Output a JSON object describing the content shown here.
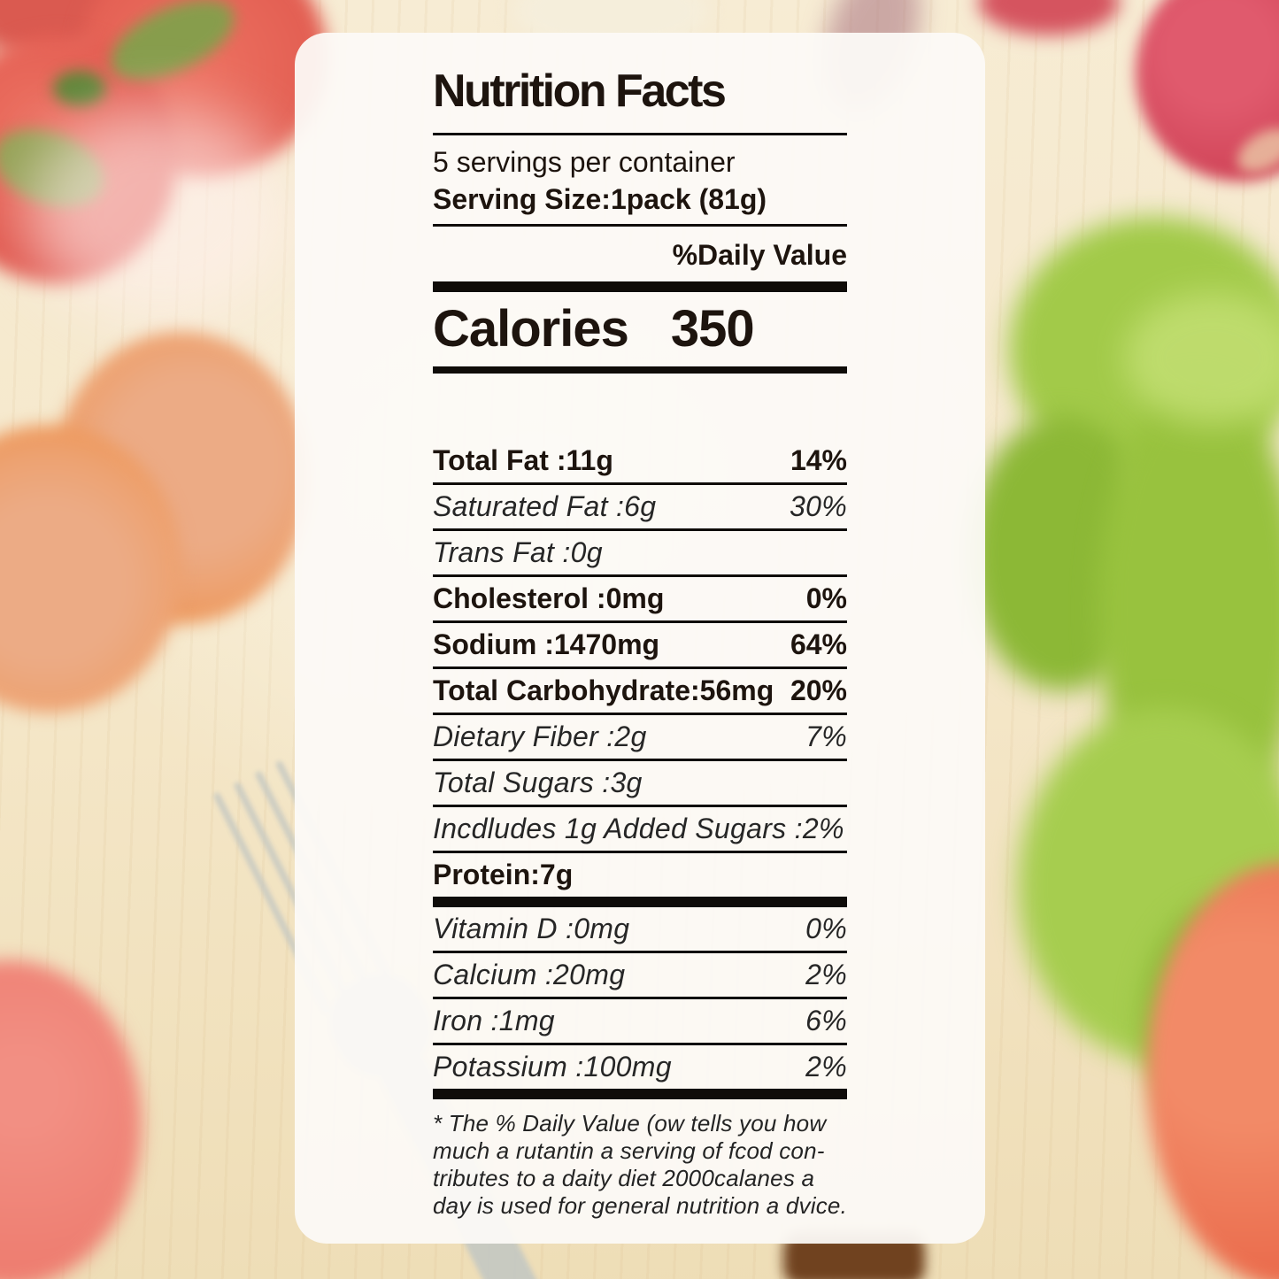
{
  "scene": {
    "description": "nutrition facts label card over blurred food photo",
    "background_items": [
      "cherry-tomatoes",
      "garlic-bulb",
      "red-onion",
      "red-radishes",
      "lettuce-leaves",
      "carrot-slices",
      "fork",
      "tomato-bottom-left",
      "tomato-bottom-right",
      "wooden-table",
      "wooden-object"
    ],
    "colors": {
      "wood": "#f5e8cb",
      "label_background": "#fcfaf6",
      "text": "#1d140e",
      "tomato_red": "#e2574d",
      "radish_red": "#d5505f",
      "lettuce_green": "#9cc544",
      "carrot_orange": "#efa05f",
      "fork_silver": "#c6c9c2"
    }
  },
  "label": {
    "title": "Nutrition Facts",
    "servings_per_container": "5 servings per container",
    "serving_size": "Serving Size:1pack (81g)",
    "daily_value_header": "%Daily Value",
    "calories_label": "Calories",
    "calories_value": "350",
    "rows": [
      {
        "label": "Total Fat :11g",
        "value": "14%"
      },
      {
        "label": "Saturated Fat :6g",
        "value": "30%"
      },
      {
        "label": "Trans Fat  :0g",
        "value": ""
      },
      {
        "label": "Cholesterol :0mg",
        "value": "0%"
      },
      {
        "label": "Sodium :1470mg",
        "value": "64%"
      },
      {
        "label": "Total Carbohydrate:56mg",
        "value": "20%"
      },
      {
        "label": "Dietary Fiber  :2g",
        "value": "7%"
      },
      {
        "label": "Total Sugars :3g",
        "value": ""
      },
      {
        "label": "Incdludes 1g Added Sugars :2%",
        "value": ""
      },
      {
        "label": "Protein:7g",
        "value": ""
      },
      {
        "label": "Vitamin D :0mg",
        "value": "0%"
      },
      {
        "label": "Calcium :20mg",
        "value": "2%"
      },
      {
        "label": "Iron :1mg",
        "value": "6%"
      },
      {
        "label": "Potassium :100mg",
        "value": "2%"
      }
    ],
    "footnote_lines": [
      "* The % Daily Value (ow tells you how",
      "much a rutantin a serving of fcod con-",
      "tributes to a daity diet 2000calanes a",
      "day is used for general nutrition a dvice."
    ]
  }
}
